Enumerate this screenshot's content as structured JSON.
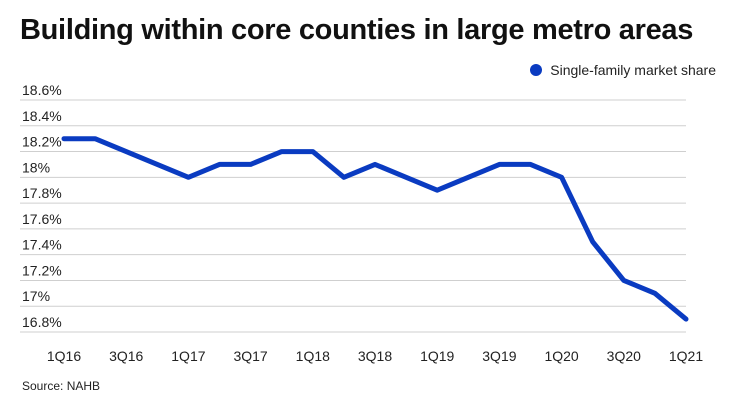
{
  "title": "Building within core counties in large metro areas",
  "source": "Source: NAHB",
  "colors": {
    "series": "#0a3bc1",
    "grid": "#cfcfcf",
    "text": "#222222"
  },
  "chart_data": {
    "type": "line",
    "title": "Building within core counties in large metro areas",
    "xlabel": "",
    "ylabel": "",
    "legend_position": "top-right",
    "grid": true,
    "x": [
      "1Q16",
      "2Q16",
      "3Q16",
      "4Q16",
      "1Q17",
      "2Q17",
      "3Q17",
      "4Q17",
      "1Q18",
      "2Q18",
      "3Q18",
      "4Q18",
      "1Q19",
      "2Q19",
      "3Q19",
      "4Q19",
      "1Q20",
      "2Q20",
      "3Q20",
      "4Q20",
      "1Q21"
    ],
    "x_tick_labels": [
      "1Q16",
      "3Q16",
      "1Q17",
      "3Q17",
      "1Q18",
      "3Q18",
      "1Q19",
      "3Q19",
      "1Q20",
      "3Q20",
      "1Q21"
    ],
    "y_tick_labels": [
      "18.6%",
      "18.4%",
      "18.2%",
      "18%",
      "17.8%",
      "17.6%",
      "17.4%",
      "17.2%",
      "17%",
      "16.8%"
    ],
    "y_ticks": [
      18.6,
      18.4,
      18.2,
      18.0,
      17.8,
      17.6,
      17.4,
      17.2,
      17.0,
      16.8
    ],
    "ylim": [
      16.8,
      18.6
    ],
    "series": [
      {
        "name": "Single-family market share",
        "values": [
          18.3,
          18.3,
          18.2,
          18.1,
          18.0,
          18.1,
          18.1,
          18.2,
          18.2,
          18.0,
          18.1,
          18.0,
          17.9,
          18.0,
          18.1,
          18.1,
          18.0,
          17.5,
          17.2,
          17.1,
          16.9
        ]
      }
    ]
  }
}
